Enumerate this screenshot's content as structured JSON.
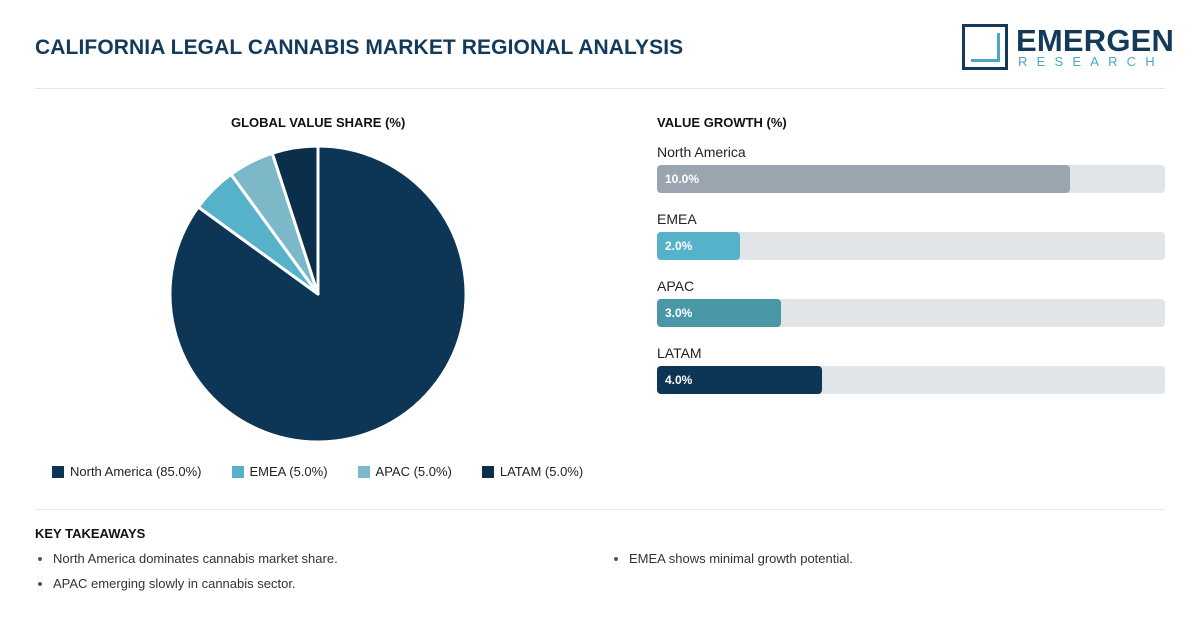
{
  "header": {
    "title": "CALIFORNIA LEGAL CANNABIS MARKET REGIONAL ANALYSIS",
    "logo_word": "EMERGEN",
    "logo_sub": "RESEARCH"
  },
  "pie": {
    "title": "GLOBAL VALUE SHARE (%)",
    "legend": [
      {
        "label": "North America (85.0%)",
        "color": "#0d3556"
      },
      {
        "label": "EMEA (5.0%)",
        "color": "#55b2c8"
      },
      {
        "label": "APAC (5.0%)",
        "color": "#7cb8c8"
      },
      {
        "label": "LATAM (5.0%)",
        "color": "#0b2e4a"
      }
    ]
  },
  "growth": {
    "title": "VALUE GROWTH (%)",
    "rows": [
      {
        "label": "North America",
        "value_text": "10.0%",
        "color": "#9aa5b0"
      },
      {
        "label": "EMEA",
        "value_text": "2.0%",
        "color": "#55b2c8"
      },
      {
        "label": "APAC",
        "value_text": "3.0%",
        "color": "#4a97a8"
      },
      {
        "label": "LATAM",
        "value_text": "4.0%",
        "color": "#0d3556"
      }
    ]
  },
  "takeaways": {
    "title": "KEY TAKEAWAYS",
    "items": [
      "North America dominates cannabis market share.",
      "APAC emerging slowly in cannabis sector.",
      "EMEA shows minimal growth potential."
    ]
  },
  "chart_data": [
    {
      "type": "pie",
      "title": "GLOBAL VALUE SHARE (%)",
      "categories": [
        "North America",
        "EMEA",
        "APAC",
        "LATAM"
      ],
      "values": [
        85.0,
        5.0,
        5.0,
        5.0
      ],
      "colors": [
        "#0d3556",
        "#55b2c8",
        "#7cb8c8",
        "#0b2e4a"
      ],
      "legend": "bottom"
    },
    {
      "type": "bar",
      "orientation": "horizontal",
      "title": "VALUE GROWTH (%)",
      "categories": [
        "North America",
        "EMEA",
        "APAC",
        "LATAM"
      ],
      "values": [
        10.0,
        2.0,
        3.0,
        4.0
      ],
      "xlim": [
        0,
        12.3
      ],
      "colors": [
        "#9aa5b0",
        "#55b2c8",
        "#4a97a8",
        "#0d3556"
      ]
    }
  ]
}
